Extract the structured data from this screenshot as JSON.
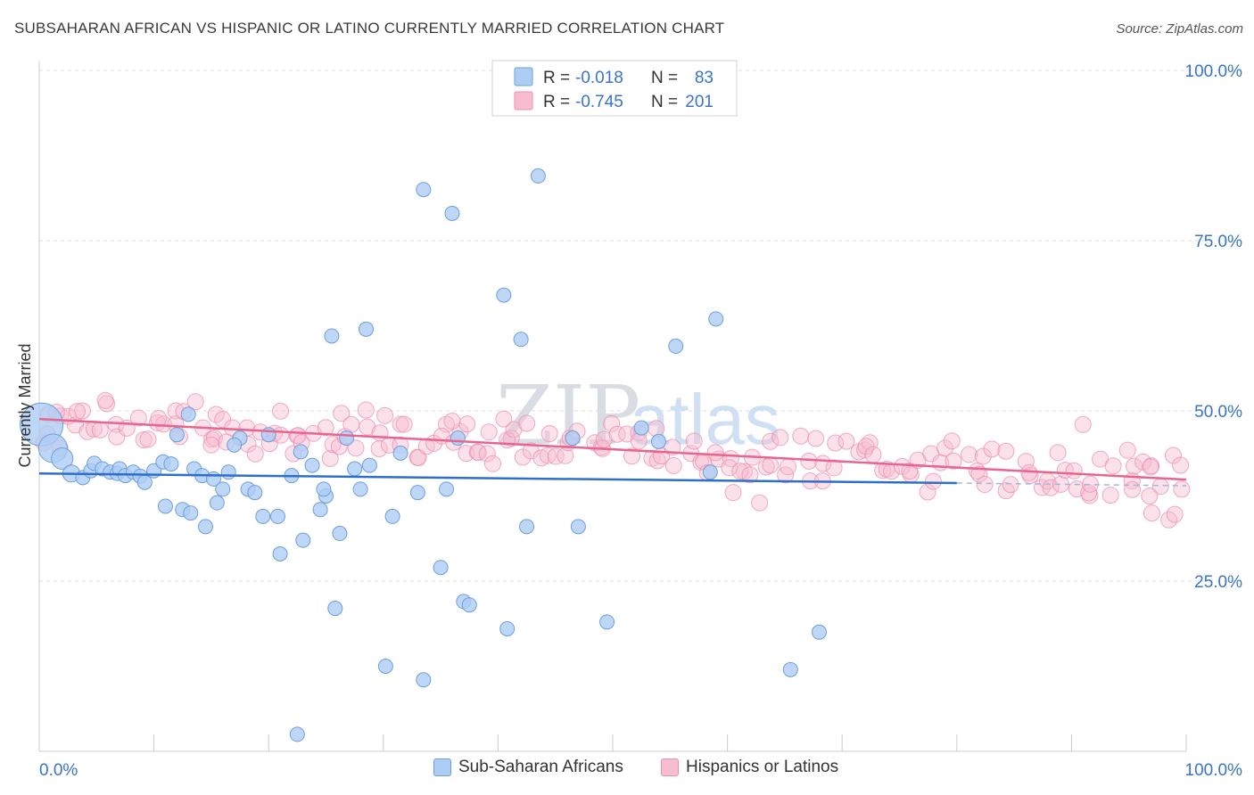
{
  "header": {
    "title": "SUBSAHARAN AFRICAN VS HISPANIC OR LATINO CURRENTLY MARRIED CORRELATION CHART",
    "source": "Source: ZipAtlas.com"
  },
  "watermark": {
    "zip": "ZIP",
    "atlas": "atlas"
  },
  "legend": {
    "r_label": "R =",
    "n_label": "N =",
    "entries": [
      {
        "r_value": "-0.018",
        "n_value": "83"
      },
      {
        "r_value": "-0.745",
        "n_value": "201"
      }
    ]
  },
  "chart_data": {
    "type": "scatter",
    "title": "SUBSAHARAN AFRICAN VS HISPANIC OR LATINO CURRENTLY MARRIED CORRELATION CHART",
    "xlabel": "",
    "ylabel": "Currently Married",
    "xlim": [
      0,
      100
    ],
    "ylim": [
      0,
      100
    ],
    "x_tick_labels": [
      {
        "value": 0,
        "label": "0.0%"
      },
      {
        "value": 100,
        "label": "100.0%"
      }
    ],
    "y_tick_labels": [
      {
        "value": 25,
        "label": "25.0%"
      },
      {
        "value": 50,
        "label": "50.0%"
      },
      {
        "value": 75,
        "label": "75.0%"
      },
      {
        "value": 100,
        "label": "100.0%"
      }
    ],
    "grid": true,
    "legend_position": "top-center",
    "colors": {
      "blue_fill": "#aecdf5",
      "blue_stroke": "#6d9fdc",
      "blue_line": "#2f6fcc",
      "pink_fill": "#f7bcd0",
      "pink_stroke": "#ec8fae",
      "pink_line": "#e8658e",
      "accent_text": "#3a74c9"
    },
    "series": [
      {
        "name": "Sub-Saharan Africans",
        "color": "#aecdf5",
        "trend": {
          "x": [
            0,
            80
          ],
          "y": [
            40.8,
            39.4
          ]
        },
        "trend_dashed_extension": {
          "x": [
            80,
            100
          ],
          "y": [
            39.4,
            39.0
          ]
        },
        "points": [
          {
            "x": 0.2,
            "y": 48.0,
            "s": 3
          },
          {
            "x": 1.2,
            "y": 44.5,
            "s": 2
          },
          {
            "x": 2.0,
            "y": 43.0,
            "s": 1.5
          },
          {
            "x": 2.8,
            "y": 40.8,
            "s": 1.2
          },
          {
            "x": 3.8,
            "y": 40.2,
            "s": 1
          },
          {
            "x": 4.5,
            "y": 41.2,
            "s": 1
          },
          {
            "x": 4.8,
            "y": 42.3,
            "s": 1
          },
          {
            "x": 5.5,
            "y": 41.5,
            "s": 1
          },
          {
            "x": 6.2,
            "y": 41.0,
            "s": 1
          },
          {
            "x": 6.8,
            "y": 40.8,
            "s": 1
          },
          {
            "x": 7.0,
            "y": 41.5,
            "s": 1
          },
          {
            "x": 7.5,
            "y": 40.5,
            "s": 1
          },
          {
            "x": 8.2,
            "y": 41.0,
            "s": 1
          },
          {
            "x": 8.8,
            "y": 40.4,
            "s": 1
          },
          {
            "x": 9.2,
            "y": 39.5,
            "s": 1
          },
          {
            "x": 10.0,
            "y": 41.2,
            "s": 1
          },
          {
            "x": 10.8,
            "y": 42.5,
            "s": 1
          },
          {
            "x": 11.0,
            "y": 36.0,
            "s": 1
          },
          {
            "x": 11.5,
            "y": 42.2,
            "s": 1
          },
          {
            "x": 12.0,
            "y": 46.5,
            "s": 1
          },
          {
            "x": 12.5,
            "y": 35.5,
            "s": 1
          },
          {
            "x": 13.0,
            "y": 49.5,
            "s": 1
          },
          {
            "x": 13.2,
            "y": 35.0,
            "s": 1
          },
          {
            "x": 13.5,
            "y": 41.5,
            "s": 1
          },
          {
            "x": 14.2,
            "y": 40.5,
            "s": 1
          },
          {
            "x": 14.5,
            "y": 33.0,
            "s": 1
          },
          {
            "x": 15.2,
            "y": 40.0,
            "s": 1
          },
          {
            "x": 15.5,
            "y": 36.5,
            "s": 1
          },
          {
            "x": 16.0,
            "y": 38.5,
            "s": 1
          },
          {
            "x": 16.5,
            "y": 41.0,
            "s": 1
          },
          {
            "x": 17.5,
            "y": 46.0,
            "s": 1
          },
          {
            "x": 18.2,
            "y": 38.5,
            "s": 1
          },
          {
            "x": 18.8,
            "y": 38.0,
            "s": 1
          },
          {
            "x": 19.5,
            "y": 34.5,
            "s": 1
          },
          {
            "x": 20.8,
            "y": 34.5,
            "s": 1
          },
          {
            "x": 21.0,
            "y": 29.0,
            "s": 1
          },
          {
            "x": 22.0,
            "y": 40.5,
            "s": 1
          },
          {
            "x": 22.5,
            "y": 2.5,
            "s": 1
          },
          {
            "x": 23.0,
            "y": 31.0,
            "s": 1
          },
          {
            "x": 23.8,
            "y": 42.0,
            "s": 1
          },
          {
            "x": 24.5,
            "y": 35.5,
            "s": 1
          },
          {
            "x": 25.0,
            "y": 37.5,
            "s": 1
          },
          {
            "x": 25.5,
            "y": 61.0,
            "s": 1
          },
          {
            "x": 25.8,
            "y": 21.0,
            "s": 1
          },
          {
            "x": 26.2,
            "y": 32.0,
            "s": 1
          },
          {
            "x": 26.8,
            "y": 46.0,
            "s": 1
          },
          {
            "x": 28.0,
            "y": 38.5,
            "s": 1
          },
          {
            "x": 28.5,
            "y": 62.0,
            "s": 1
          },
          {
            "x": 28.8,
            "y": 42.0,
            "s": 1
          },
          {
            "x": 30.2,
            "y": 12.5,
            "s": 1
          },
          {
            "x": 30.8,
            "y": 34.5,
            "s": 1
          },
          {
            "x": 31.5,
            "y": 43.8,
            "s": 1
          },
          {
            "x": 33.0,
            "y": 38.0,
            "s": 1
          },
          {
            "x": 33.5,
            "y": 10.5,
            "s": 1
          },
          {
            "x": 35.0,
            "y": 27.0,
            "s": 1
          },
          {
            "x": 35.5,
            "y": 38.5,
            "s": 1
          },
          {
            "x": 36.5,
            "y": 46.0,
            "s": 1
          },
          {
            "x": 37.0,
            "y": 22.0,
            "s": 1
          },
          {
            "x": 37.5,
            "y": 21.5,
            "s": 1
          },
          {
            "x": 33.5,
            "y": 82.5,
            "s": 1
          },
          {
            "x": 36.0,
            "y": 79.0,
            "s": 1
          },
          {
            "x": 40.5,
            "y": 67.0,
            "s": 1
          },
          {
            "x": 42.0,
            "y": 60.5,
            "s": 1
          },
          {
            "x": 40.8,
            "y": 18.0,
            "s": 1
          },
          {
            "x": 42.5,
            "y": 33.0,
            "s": 1
          },
          {
            "x": 43.5,
            "y": 84.5,
            "s": 1
          },
          {
            "x": 46.5,
            "y": 46.0,
            "s": 1
          },
          {
            "x": 47.0,
            "y": 33.0,
            "s": 1
          },
          {
            "x": 49.5,
            "y": 19.0,
            "s": 1
          },
          {
            "x": 52.5,
            "y": 47.5,
            "s": 1
          },
          {
            "x": 54.0,
            "y": 45.5,
            "s": 1
          },
          {
            "x": 55.5,
            "y": 59.5,
            "s": 1
          },
          {
            "x": 59.0,
            "y": 63.5,
            "s": 1
          },
          {
            "x": 58.5,
            "y": 41.0,
            "s": 1
          },
          {
            "x": 65.5,
            "y": 12.0,
            "s": 1
          },
          {
            "x": 68.0,
            "y": 17.5,
            "s": 1
          },
          {
            "x": 17.0,
            "y": 45.0,
            "s": 1
          },
          {
            "x": 20.0,
            "y": 46.5,
            "s": 1
          },
          {
            "x": 22.8,
            "y": 44.0,
            "s": 1
          },
          {
            "x": 27.5,
            "y": 41.5,
            "s": 1
          },
          {
            "x": 24.8,
            "y": 38.5,
            "s": 1
          }
        ]
      },
      {
        "name": "Hispanics or Latinos",
        "color": "#f7bcd0",
        "trend": {
          "x": [
            0,
            100
          ],
          "y": [
            48.8,
            39.9
          ]
        }
      }
    ]
  }
}
